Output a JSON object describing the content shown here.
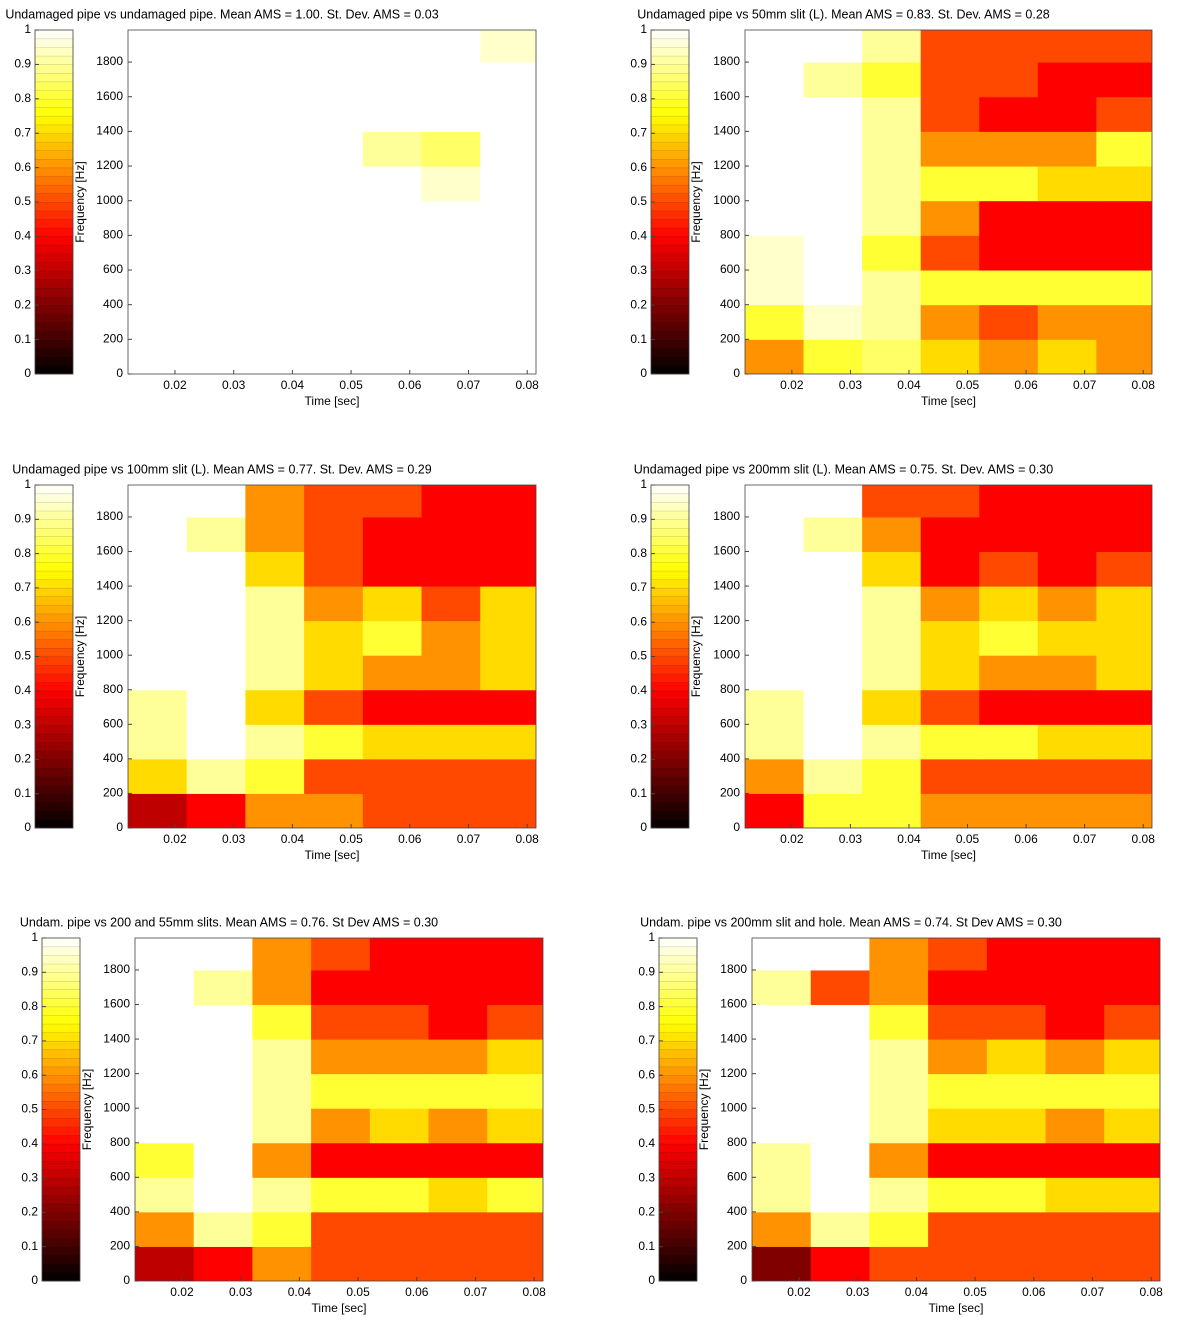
{
  "chart_data": [
    {
      "type": "heatmap",
      "title": "Undamaged pipe vs undamaged pipe. Mean AMS = 1.00. St. Dev. AMS = 0.03",
      "xlabel": "Time [sec]",
      "ylabel": "Frequency [Hz]",
      "colormap": "hot",
      "xlim": [
        0.012,
        0.0815
      ],
      "ylim": [
        0,
        1985
      ],
      "xticks": [
        0.02,
        0.03,
        0.04,
        0.05,
        0.06,
        0.07,
        0.08
      ],
      "yticks": [
        0,
        200,
        400,
        600,
        800,
        1000,
        1200,
        1400,
        1600,
        1800
      ],
      "clim": [
        0,
        1
      ],
      "cticks": [
        0,
        0.1,
        0.2,
        0.3,
        0.4,
        0.5,
        0.6,
        0.7,
        0.8,
        0.9,
        1
      ],
      "x": [
        0.017,
        0.027,
        0.037,
        0.047,
        0.057,
        0.067,
        0.077
      ],
      "y": [
        100,
        300,
        500,
        700,
        900,
        1100,
        1300,
        1500,
        1700,
        1900
      ],
      "z": [
        [
          1,
          1,
          1,
          1,
          1,
          1,
          1
        ],
        [
          1,
          1,
          1,
          1,
          1,
          1,
          1
        ],
        [
          1,
          1,
          1,
          1,
          1,
          1,
          1
        ],
        [
          1,
          1,
          1,
          1,
          1,
          1,
          1
        ],
        [
          1,
          1,
          1,
          1,
          1,
          1,
          1
        ],
        [
          1,
          1,
          1,
          1,
          1,
          0.95,
          1
        ],
        [
          1,
          1,
          1,
          1,
          0.9,
          0.85,
          1
        ],
        [
          1,
          1,
          1,
          1,
          1,
          1,
          1
        ],
        [
          1,
          1,
          1,
          1,
          1,
          1,
          1
        ],
        [
          1,
          1,
          1,
          1,
          1,
          1,
          0.95
        ]
      ]
    },
    {
      "type": "heatmap",
      "title": "Undamaged pipe vs 50mm slit (L). Mean AMS = 0.83. St. Dev. AMS = 0.28",
      "xlabel": "Time [sec]",
      "ylabel": "Frequency [Hz]",
      "colormap": "hot",
      "xlim": [
        0.012,
        0.0815
      ],
      "ylim": [
        0,
        1985
      ],
      "xticks": [
        0.02,
        0.03,
        0.04,
        0.05,
        0.06,
        0.07,
        0.08
      ],
      "yticks": [
        0,
        200,
        400,
        600,
        800,
        1000,
        1200,
        1400,
        1600,
        1800
      ],
      "clim": [
        0,
        1
      ],
      "cticks": [
        0,
        0.1,
        0.2,
        0.3,
        0.4,
        0.5,
        0.6,
        0.7,
        0.8,
        0.9,
        1
      ],
      "x": [
        0.017,
        0.027,
        0.037,
        0.047,
        0.057,
        0.067,
        0.077
      ],
      "y": [
        100,
        300,
        500,
        700,
        900,
        1100,
        1300,
        1500,
        1700,
        1900
      ],
      "z": [
        [
          0.6,
          0.8,
          0.85,
          0.7,
          0.6,
          0.7,
          0.6
        ],
        [
          0.8,
          0.95,
          0.9,
          0.6,
          0.5,
          0.6,
          0.6
        ],
        [
          0.95,
          1,
          0.9,
          0.8,
          0.8,
          0.8,
          0.8
        ],
        [
          0.95,
          1,
          0.8,
          0.5,
          0.4,
          0.4,
          0.4
        ],
        [
          1,
          1,
          0.9,
          0.6,
          0.4,
          0.4,
          0.4
        ],
        [
          1,
          1,
          0.9,
          0.8,
          0.8,
          0.7,
          0.7
        ],
        [
          1,
          1,
          0.9,
          0.6,
          0.6,
          0.6,
          0.8
        ],
        [
          1,
          1,
          0.9,
          0.5,
          0.4,
          0.4,
          0.5
        ],
        [
          1,
          0.9,
          0.8,
          0.5,
          0.5,
          0.4,
          0.4
        ],
        [
          1,
          1,
          0.9,
          0.5,
          0.5,
          0.5,
          0.5
        ]
      ]
    },
    {
      "type": "heatmap",
      "title": "Undamaged pipe vs 100mm slit (L). Mean AMS = 0.77. St. Dev. AMS = 0.29",
      "xlabel": "Time [sec]",
      "ylabel": "Frequency [Hz]",
      "colormap": "hot",
      "xlim": [
        0.012,
        0.0815
      ],
      "ylim": [
        0,
        1985
      ],
      "xticks": [
        0.02,
        0.03,
        0.04,
        0.05,
        0.06,
        0.07,
        0.08
      ],
      "yticks": [
        0,
        200,
        400,
        600,
        800,
        1000,
        1200,
        1400,
        1600,
        1800
      ],
      "clim": [
        0,
        1
      ],
      "cticks": [
        0,
        0.1,
        0.2,
        0.3,
        0.4,
        0.5,
        0.6,
        0.7,
        0.8,
        0.9,
        1
      ],
      "x": [
        0.017,
        0.027,
        0.037,
        0.047,
        0.057,
        0.067,
        0.077
      ],
      "y": [
        100,
        300,
        500,
        700,
        900,
        1100,
        1300,
        1500,
        1700,
        1900
      ],
      "z": [
        [
          0.3,
          0.4,
          0.6,
          0.6,
          0.5,
          0.5,
          0.5
        ],
        [
          0.7,
          0.9,
          0.8,
          0.5,
          0.5,
          0.5,
          0.5
        ],
        [
          0.9,
          1,
          0.9,
          0.8,
          0.7,
          0.7,
          0.7
        ],
        [
          0.9,
          1,
          0.7,
          0.5,
          0.4,
          0.4,
          0.4
        ],
        [
          1,
          1,
          0.9,
          0.7,
          0.6,
          0.6,
          0.7
        ],
        [
          1,
          1,
          0.9,
          0.7,
          0.8,
          0.6,
          0.7
        ],
        [
          1,
          1,
          0.9,
          0.6,
          0.7,
          0.5,
          0.7
        ],
        [
          1,
          1,
          0.7,
          0.5,
          0.4,
          0.4,
          0.4
        ],
        [
          1,
          0.9,
          0.6,
          0.5,
          0.4,
          0.4,
          0.4
        ],
        [
          1,
          1,
          0.6,
          0.5,
          0.5,
          0.4,
          0.4
        ]
      ]
    },
    {
      "type": "heatmap",
      "title": "Undamaged pipe vs 200mm slit (L). Mean AMS = 0.75. St. Dev. AMS = 0.30",
      "xlabel": "Time [sec]",
      "ylabel": "Frequency [Hz]",
      "colormap": "hot",
      "xlim": [
        0.012,
        0.0815
      ],
      "ylim": [
        0,
        1985
      ],
      "xticks": [
        0.02,
        0.03,
        0.04,
        0.05,
        0.06,
        0.07,
        0.08
      ],
      "yticks": [
        0,
        200,
        400,
        600,
        800,
        1000,
        1200,
        1400,
        1600,
        1800
      ],
      "clim": [
        0,
        1
      ],
      "cticks": [
        0,
        0.1,
        0.2,
        0.3,
        0.4,
        0.5,
        0.6,
        0.7,
        0.8,
        0.9,
        1
      ],
      "x": [
        0.017,
        0.027,
        0.037,
        0.047,
        0.057,
        0.067,
        0.077
      ],
      "y": [
        100,
        300,
        500,
        700,
        900,
        1100,
        1300,
        1500,
        1700,
        1900
      ],
      "z": [
        [
          0.4,
          0.8,
          0.8,
          0.6,
          0.6,
          0.6,
          0.6
        ],
        [
          0.6,
          0.9,
          0.8,
          0.5,
          0.5,
          0.5,
          0.5
        ],
        [
          0.9,
          1,
          0.9,
          0.8,
          0.8,
          0.7,
          0.7
        ],
        [
          0.9,
          1,
          0.7,
          0.5,
          0.4,
          0.4,
          0.4
        ],
        [
          1,
          1,
          0.9,
          0.7,
          0.6,
          0.6,
          0.7
        ],
        [
          1,
          1,
          0.9,
          0.7,
          0.8,
          0.7,
          0.7
        ],
        [
          1,
          1,
          0.9,
          0.6,
          0.7,
          0.6,
          0.7
        ],
        [
          1,
          1,
          0.7,
          0.4,
          0.5,
          0.4,
          0.5
        ],
        [
          1,
          0.9,
          0.6,
          0.4,
          0.4,
          0.4,
          0.4
        ],
        [
          1,
          1,
          0.5,
          0.5,
          0.4,
          0.4,
          0.4
        ]
      ]
    },
    {
      "type": "heatmap",
      "title": "Undam. pipe vs 200 and 55mm slits. Mean AMS = 0.76. St Dev AMS = 0.30",
      "xlabel": "Time [sec]",
      "ylabel": "Frequency [Hz]",
      "colormap": "hot",
      "xlim": [
        0.012,
        0.0815
      ],
      "ylim": [
        0,
        1985
      ],
      "xticks": [
        0.02,
        0.03,
        0.04,
        0.05,
        0.06,
        0.07,
        0.08
      ],
      "yticks": [
        0,
        200,
        400,
        600,
        800,
        1000,
        1200,
        1400,
        1600,
        1800
      ],
      "clim": [
        0,
        1
      ],
      "cticks": [
        0,
        0.1,
        0.2,
        0.3,
        0.4,
        0.5,
        0.6,
        0.7,
        0.8,
        0.9,
        1
      ],
      "x": [
        0.017,
        0.027,
        0.037,
        0.047,
        0.057,
        0.067,
        0.077
      ],
      "y": [
        100,
        300,
        500,
        700,
        900,
        1100,
        1300,
        1500,
        1700,
        1900
      ],
      "z": [
        [
          0.3,
          0.4,
          0.6,
          0.5,
          0.5,
          0.5,
          0.5
        ],
        [
          0.6,
          0.9,
          0.8,
          0.5,
          0.5,
          0.5,
          0.5
        ],
        [
          0.9,
          1,
          0.9,
          0.8,
          0.8,
          0.7,
          0.8
        ],
        [
          0.8,
          1,
          0.6,
          0.4,
          0.4,
          0.4,
          0.4
        ],
        [
          1,
          1,
          0.9,
          0.6,
          0.7,
          0.6,
          0.7
        ],
        [
          1,
          1,
          0.9,
          0.8,
          0.8,
          0.8,
          0.8
        ],
        [
          1,
          1,
          0.9,
          0.6,
          0.6,
          0.6,
          0.7
        ],
        [
          1,
          1,
          0.8,
          0.5,
          0.5,
          0.4,
          0.5
        ],
        [
          1,
          0.9,
          0.6,
          0.4,
          0.4,
          0.4,
          0.4
        ],
        [
          1,
          1,
          0.6,
          0.5,
          0.4,
          0.4,
          0.4
        ]
      ]
    },
    {
      "type": "heatmap",
      "title": "Undam. pipe vs 200mm slit and hole. Mean AMS = 0.74. St Dev AMS = 0.30",
      "xlabel": "Time [sec]",
      "ylabel": "Frequency [Hz]",
      "colormap": "hot",
      "xlim": [
        0.012,
        0.0815
      ],
      "ylim": [
        0,
        1985
      ],
      "xticks": [
        0.02,
        0.03,
        0.04,
        0.05,
        0.06,
        0.07,
        0.08
      ],
      "yticks": [
        0,
        200,
        400,
        600,
        800,
        1000,
        1200,
        1400,
        1600,
        1800
      ],
      "clim": [
        0,
        1
      ],
      "cticks": [
        0,
        0.1,
        0.2,
        0.3,
        0.4,
        0.5,
        0.6,
        0.7,
        0.8,
        0.9,
        1
      ],
      "x": [
        0.017,
        0.027,
        0.037,
        0.047,
        0.057,
        0.067,
        0.077
      ],
      "y": [
        100,
        300,
        500,
        700,
        900,
        1100,
        1300,
        1500,
        1700,
        1900
      ],
      "z": [
        [
          0.2,
          0.4,
          0.5,
          0.5,
          0.5,
          0.5,
          0.5
        ],
        [
          0.6,
          0.9,
          0.8,
          0.5,
          0.5,
          0.5,
          0.5
        ],
        [
          0.9,
          1,
          0.9,
          0.8,
          0.8,
          0.7,
          0.7
        ],
        [
          0.9,
          1,
          0.6,
          0.4,
          0.4,
          0.4,
          0.4
        ],
        [
          1,
          1,
          0.9,
          0.7,
          0.7,
          0.6,
          0.7
        ],
        [
          1,
          1,
          0.9,
          0.8,
          0.8,
          0.8,
          0.8
        ],
        [
          1,
          1,
          0.9,
          0.6,
          0.7,
          0.6,
          0.7
        ],
        [
          1,
          1,
          0.8,
          0.5,
          0.5,
          0.4,
          0.5
        ],
        [
          0.9,
          0.5,
          0.6,
          0.4,
          0.4,
          0.4,
          0.4
        ],
        [
          1,
          1,
          0.6,
          0.5,
          0.4,
          0.4,
          0.4
        ]
      ]
    }
  ]
}
